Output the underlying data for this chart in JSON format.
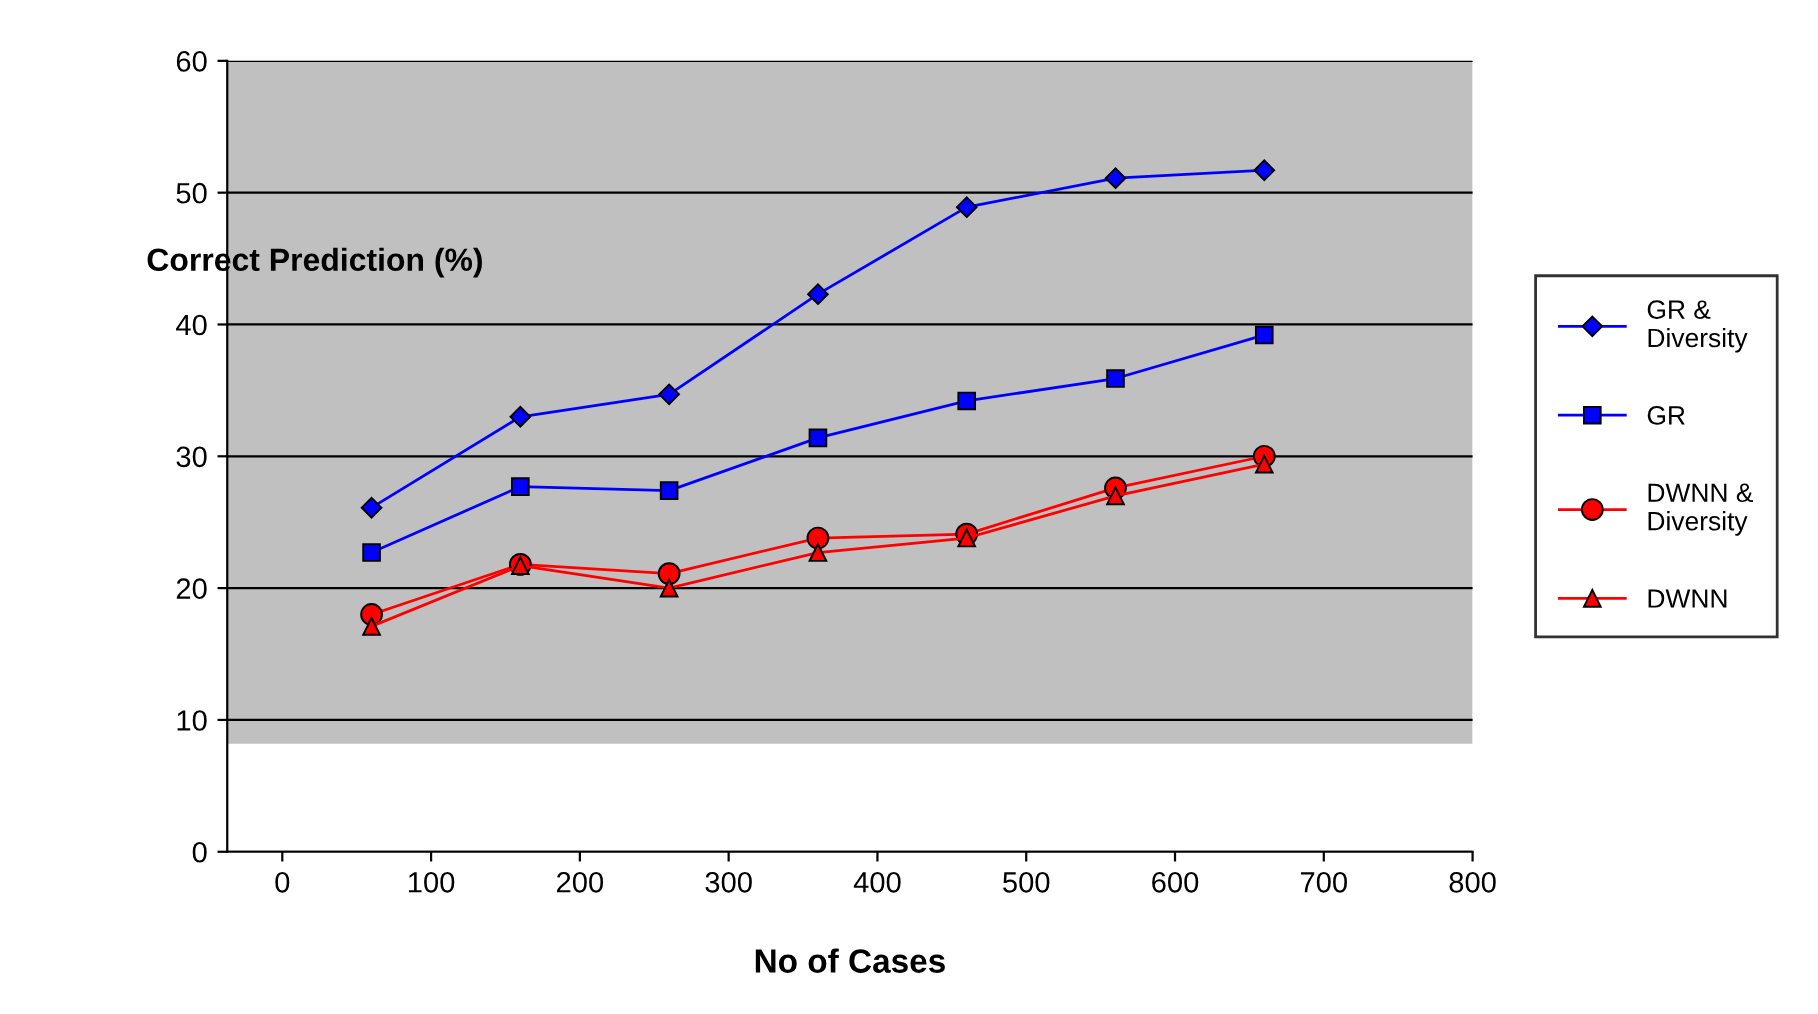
{
  "chart_data": {
    "type": "line",
    "xlabel": "No of Cases",
    "ylabel": "Correct Prediction (%)",
    "x": [
      60,
      160,
      260,
      360,
      460,
      560,
      660
    ],
    "xlim": [
      -37,
      800
    ],
    "xticks": [
      0,
      100,
      200,
      300,
      400,
      500,
      600,
      700,
      800
    ],
    "ylim": [
      0,
      60
    ],
    "yticks": [
      0,
      10,
      20,
      30,
      40,
      50,
      60
    ],
    "grid": "y",
    "legend": "right",
    "bands": [
      {
        "axis": "y",
        "from": 8.2,
        "to": 60,
        "color": "#c0c0c0"
      }
    ],
    "series": [
      {
        "name": "GR &\nDiversity",
        "color": "#0000ff",
        "marker": "diamond",
        "values": [
          26.1,
          33.0,
          34.7,
          42.3,
          48.9,
          51.1,
          51.7
        ]
      },
      {
        "name": "GR",
        "color": "#0000ff",
        "marker": "square",
        "values": [
          22.7,
          27.7,
          27.4,
          31.4,
          34.2,
          35.9,
          39.2
        ]
      },
      {
        "name": "DWNN &\nDiversity",
        "color": "#ff0000",
        "marker": "circle",
        "values": [
          18.0,
          21.8,
          21.1,
          23.8,
          24.1,
          27.6,
          30.0
        ]
      },
      {
        "name": "DWNN",
        "color": "#ff0000",
        "marker": "triangle",
        "values": [
          17.1,
          21.7,
          20.0,
          22.7,
          23.8,
          27.0,
          29.4
        ]
      }
    ]
  }
}
